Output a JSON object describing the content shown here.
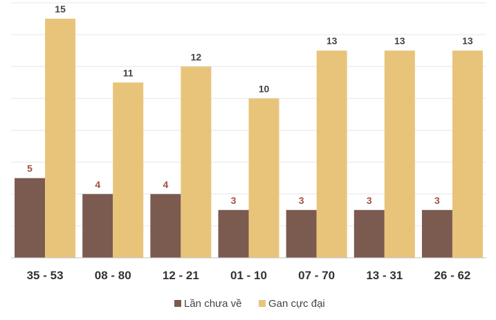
{
  "chart_data": {
    "type": "bar",
    "categories": [
      "35 - 53",
      "08 - 80",
      "12 - 21",
      "01 - 10",
      "07 - 70",
      "13 - 31",
      "26 - 62"
    ],
    "series": [
      {
        "name": "Lần chưa về",
        "values": [
          5,
          4,
          4,
          3,
          3,
          3,
          3
        ],
        "color": "#7b5a50",
        "label_color": "#a0523c"
      },
      {
        "name": "Gan cực đại",
        "values": [
          15,
          11,
          12,
          10,
          13,
          13,
          13
        ],
        "color": "#e8c47b",
        "label_color": "#444444"
      }
    ],
    "ylim": [
      0,
      16
    ],
    "grid": true,
    "legend": "bottom-center"
  }
}
